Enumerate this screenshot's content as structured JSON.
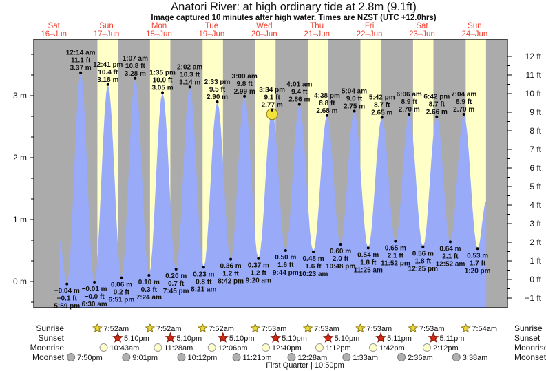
{
  "header": {
    "title": "Anatori River: at high  ordinary tide at 2.8m (9.1ft)",
    "subtitle": "Image captured 10 minutes after high water. Times are NZST (UTC +12.0hrs)"
  },
  "colors": {
    "night_band": "#ababab",
    "day_band": "#ffffc8",
    "tide_fill": "#98aaf8",
    "day_label_red": "#ee4433",
    "annotation_text": "#111111",
    "current_marker_fill": "#f2e23c",
    "sunrise_star": "#ecd73c",
    "sunset_star": "#d42a10",
    "moonrise_circle": "#ffffcc",
    "moonset_circle": "#b0b0b0"
  },
  "chart_data": {
    "type": "area",
    "title": "Anatori River tide height",
    "ylabel_left": "m",
    "ylabel_right": "ft",
    "left_ticks": [
      "3 m",
      "2 m",
      "1 m",
      "0 m"
    ],
    "left_tick_values_m": [
      3,
      2,
      1,
      0
    ],
    "right_ticks": [
      "12 ft",
      "11 ft",
      "10 ft",
      "9 ft",
      "8 ft",
      "7 ft",
      "6 ft",
      "5 ft",
      "4 ft",
      "3 ft",
      "2 ft",
      "1 ft",
      "0 ft",
      "−1 ft"
    ],
    "right_tick_values_ft": [
      12,
      11,
      10,
      9,
      8,
      7,
      6,
      5,
      4,
      3,
      2,
      1,
      0,
      -1
    ],
    "ylim_m": [
      -0.42,
      3.91
    ],
    "days": [
      {
        "name": "Sat",
        "date": "16–Jun"
      },
      {
        "name": "Sun",
        "date": "17–Jun"
      },
      {
        "name": "Mon",
        "date": "18–Jun"
      },
      {
        "name": "Tue",
        "date": "19–Jun"
      },
      {
        "name": "Wed",
        "date": "20–Jun"
      },
      {
        "name": "Thu",
        "date": "21–Jun"
      },
      {
        "name": "Fri",
        "date": "22–Jun"
      },
      {
        "name": "Sat",
        "date": "23–Jun"
      },
      {
        "name": "Sun",
        "date": "24–Jun"
      }
    ],
    "tide_events": [
      {
        "kind": "low",
        "day": 0,
        "time": "5:59 pm",
        "ft": "−0.1 ft",
        "m": "−0.04 m",
        "m_val": -0.04
      },
      {
        "kind": "high",
        "day": 1,
        "time": "12:14 am",
        "ft": "11.1 ft",
        "m": "3.37 m",
        "m_val": 3.37
      },
      {
        "kind": "low",
        "day": 1,
        "time": "6:30 am",
        "ft": "−0.0 ft",
        "m": "−0.01 m",
        "m_val": -0.01
      },
      {
        "kind": "high",
        "day": 1,
        "time": "12:41 pm",
        "ft": "10.4 ft",
        "m": "3.18 m",
        "m_val": 3.18
      },
      {
        "kind": "low",
        "day": 1,
        "time": "6:51 pm",
        "ft": "0.2 ft",
        "m": "0.06 m",
        "m_val": 0.06
      },
      {
        "kind": "high",
        "day": 2,
        "time": "1:07 am",
        "ft": "10.8 ft",
        "m": "3.28 m",
        "m_val": 3.28
      },
      {
        "kind": "low",
        "day": 2,
        "time": "7:24 am",
        "ft": "0.3 ft",
        "m": "0.10 m",
        "m_val": 0.1
      },
      {
        "kind": "high",
        "day": 2,
        "time": "1:35 pm",
        "ft": "10.0 ft",
        "m": "3.05 m",
        "m_val": 3.05
      },
      {
        "kind": "low",
        "day": 2,
        "time": "7:45 pm",
        "ft": "0.7 ft",
        "m": "0.20 m",
        "m_val": 0.2
      },
      {
        "kind": "high",
        "day": 3,
        "time": "2:02 am",
        "ft": "10.3 ft",
        "m": "3.14 m",
        "m_val": 3.14
      },
      {
        "kind": "low",
        "day": 3,
        "time": "8:21 am",
        "ft": "0.8 ft",
        "m": "0.23 m",
        "m_val": 0.23
      },
      {
        "kind": "high",
        "day": 3,
        "time": "2:33 pm",
        "ft": "9.5 ft",
        "m": "2.90 m",
        "m_val": 2.9
      },
      {
        "kind": "low",
        "day": 3,
        "time": "8:42 pm",
        "ft": "1.2 ft",
        "m": "0.36 m",
        "m_val": 0.36
      },
      {
        "kind": "high",
        "day": 4,
        "time": "3:00 am",
        "ft": "9.8 ft",
        "m": "2.99 m",
        "m_val": 2.99
      },
      {
        "kind": "low",
        "day": 4,
        "time": "9:20 am",
        "ft": "1.2 ft",
        "m": "0.37 m",
        "m_val": 0.37
      },
      {
        "kind": "high",
        "day": 4,
        "time": "3:34 pm",
        "ft": "9.1 ft",
        "m": "2.77 m",
        "m_val": 2.77,
        "current": true
      },
      {
        "kind": "low",
        "day": 4,
        "time": "9:44 pm",
        "ft": "1.6 ft",
        "m": "0.50 m",
        "m_val": 0.5
      },
      {
        "kind": "high",
        "day": 5,
        "time": "4:01 am",
        "ft": "9.4 ft",
        "m": "2.86 m",
        "m_val": 2.86
      },
      {
        "kind": "low",
        "day": 5,
        "time": "10:23 am",
        "ft": "1.6 ft",
        "m": "0.48 m",
        "m_val": 0.48
      },
      {
        "kind": "high",
        "day": 5,
        "time": "4:38 pm",
        "ft": "8.8 ft",
        "m": "2.68 m",
        "m_val": 2.68
      },
      {
        "kind": "low",
        "day": 5,
        "time": "10:48 pm",
        "ft": "2.0 ft",
        "m": "0.60 m",
        "m_val": 0.6
      },
      {
        "kind": "high",
        "day": 6,
        "time": "5:04 am",
        "ft": "9.0 ft",
        "m": "2.75 m",
        "m_val": 2.75
      },
      {
        "kind": "low",
        "day": 6,
        "time": "11:25 am",
        "ft": "1.8 ft",
        "m": "0.54 m",
        "m_val": 0.54
      },
      {
        "kind": "high",
        "day": 6,
        "time": "5:42 pm",
        "ft": "8.7 ft",
        "m": "2.65 m",
        "m_val": 2.65
      },
      {
        "kind": "low",
        "day": 6,
        "time": "11:52 pm",
        "ft": "2.1 ft",
        "m": "0.65 m",
        "m_val": 0.65
      },
      {
        "kind": "high",
        "day": 7,
        "time": "6:06 am",
        "ft": "8.9 ft",
        "m": "2.70 m",
        "m_val": 2.7
      },
      {
        "kind": "low",
        "day": 7,
        "time": "12:25 pm",
        "ft": "1.8 ft",
        "m": "0.56 m",
        "m_val": 0.56
      },
      {
        "kind": "high",
        "day": 7,
        "time": "6:42 pm",
        "ft": "8.7 ft",
        "m": "2.66 m",
        "m_val": 2.66
      },
      {
        "kind": "low",
        "day": 8,
        "time": "12:52 am",
        "ft": "2.1 ft",
        "m": "0.64 m",
        "m_val": 0.64
      },
      {
        "kind": "high",
        "day": 8,
        "time": "7:04 am",
        "ft": "8.9 ft",
        "m": "2.70 m",
        "m_val": 2.7
      },
      {
        "kind": "low",
        "day": 8,
        "time": "1:20 pm",
        "ft": "1.7 ft",
        "m": "0.53 m",
        "m_val": 0.53
      }
    ],
    "edge_start": {
      "day_frac": 0.605,
      "m_val": 0.68
    },
    "edge_end": {
      "day_frac": 8.72,
      "m_val": 1.3
    }
  },
  "astro": {
    "row_labels": [
      "Sunrise",
      "Sunset",
      "Moonrise",
      "Moonset"
    ],
    "sunrise": [
      {
        "day": 1,
        "time": "7:52am"
      },
      {
        "day": 2,
        "time": "7:52am"
      },
      {
        "day": 3,
        "time": "7:52am"
      },
      {
        "day": 4,
        "time": "7:53am"
      },
      {
        "day": 5,
        "time": "7:53am"
      },
      {
        "day": 6,
        "time": "7:53am"
      },
      {
        "day": 7,
        "time": "7:53am"
      },
      {
        "day": 8,
        "time": "7:54am"
      }
    ],
    "sunset": [
      {
        "day": 1,
        "time": "5:10pm"
      },
      {
        "day": 2,
        "time": "5:10pm"
      },
      {
        "day": 3,
        "time": "5:10pm"
      },
      {
        "day": 4,
        "time": "5:10pm"
      },
      {
        "day": 5,
        "time": "5:10pm"
      },
      {
        "day": 6,
        "time": "5:11pm"
      },
      {
        "day": 7,
        "time": "5:11pm"
      }
    ],
    "moonrise": [
      {
        "day": 1,
        "time": "10:43am"
      },
      {
        "day": 2,
        "time": "11:28am"
      },
      {
        "day": 3,
        "time": "12:06pm"
      },
      {
        "day": 4,
        "time": "12:40pm"
      },
      {
        "day": 5,
        "time": "1:12pm"
      },
      {
        "day": 6,
        "time": "1:42pm"
      },
      {
        "day": 7,
        "time": "2:12pm"
      }
    ],
    "moonset": [
      {
        "day": 0,
        "time": "7:50pm"
      },
      {
        "day": 1,
        "time": "9:01pm"
      },
      {
        "day": 2,
        "time": "10:12pm"
      },
      {
        "day": 3,
        "time": "11:21pm"
      },
      {
        "day": 5,
        "time": "12:28am"
      },
      {
        "day": 6,
        "time": "1:33am"
      },
      {
        "day": 7,
        "time": "2:36am"
      },
      {
        "day": 8,
        "time": "3:38am"
      }
    ],
    "moon_phase": "First Quarter | 10:50pm"
  }
}
